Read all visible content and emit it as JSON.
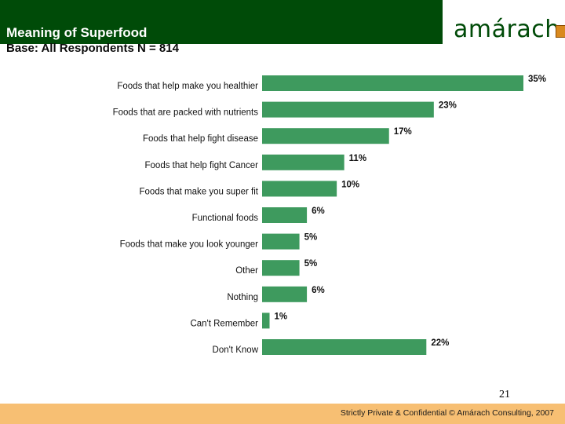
{
  "header": {
    "title": "Meaning of Superfood",
    "subtitle": "Base: All Respondents N = 814",
    "logo_text": "amárach"
  },
  "colors": {
    "header_bg": "#004b08",
    "bar": "#3e9a5e",
    "footer_bg": "#f7bf73",
    "logo_mark": "#d9891e"
  },
  "chart_data": {
    "type": "bar",
    "orientation": "horizontal",
    "categories": [
      "Foods that help make you healthier",
      "Foods that are packed with nutrients",
      "Foods that help fight disease",
      "Foods that help fight Cancer",
      "Foods that make you super fit",
      "Functional foods",
      "Foods that make you look younger",
      "Other",
      "Nothing",
      "Can't Remember",
      "Don't Know"
    ],
    "values": [
      35,
      23,
      17,
      11,
      10,
      6,
      5,
      5,
      6,
      1,
      22
    ],
    "value_labels": [
      "35%",
      "23%",
      "17%",
      "11%",
      "10%",
      "6%",
      "5%",
      "5%",
      "6%",
      "1%",
      "22%"
    ],
    "xlim": [
      0,
      35
    ],
    "grid": false,
    "legend": false
  },
  "footer": {
    "page_number": "21",
    "text": "Strictly Private & Confidential © Amárach Consulting, 2007"
  }
}
